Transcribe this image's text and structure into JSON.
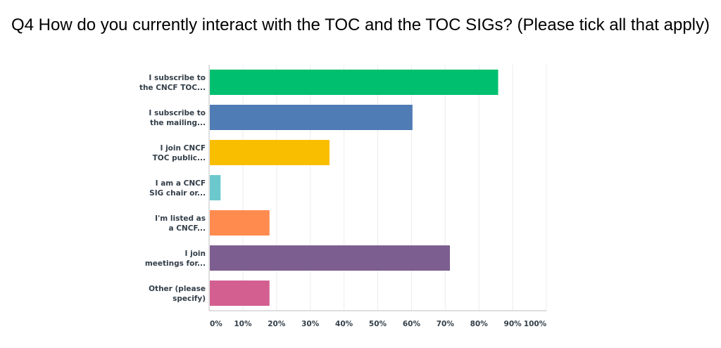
{
  "chart_data": {
    "type": "bar",
    "orientation": "horizontal",
    "title": "Q4 How do you currently interact with the TOC and the TOC SIGs? (Please tick all that apply)",
    "xlabel": "",
    "ylabel": "",
    "xlim": [
      0,
      100
    ],
    "x_ticks": [
      "0%",
      "10%",
      "20%",
      "30%",
      "40%",
      "50%",
      "60%",
      "70%",
      "80%",
      "90%",
      "100%"
    ],
    "grid": true,
    "categories": [
      [
        "I subscribe to",
        "the CNCF TOC..."
      ],
      [
        "I subscribe to",
        "the mailing..."
      ],
      [
        "I join CNCF",
        "TOC public..."
      ],
      [
        "I am a CNCF",
        "SIG chair or..."
      ],
      [
        "I'm listed as",
        "a CNCF..."
      ],
      [
        "I join",
        "meetings for..."
      ],
      [
        "Other (please",
        "specify)"
      ]
    ],
    "values": [
      85.7,
      60.3,
      35.7,
      3.4,
      17.9,
      71.4,
      17.9
    ],
    "colors": [
      "#00bf6f",
      "#507cb6",
      "#f9be00",
      "#6bc8cd",
      "#ff8b4f",
      "#7d5e90",
      "#d25f90"
    ]
  }
}
